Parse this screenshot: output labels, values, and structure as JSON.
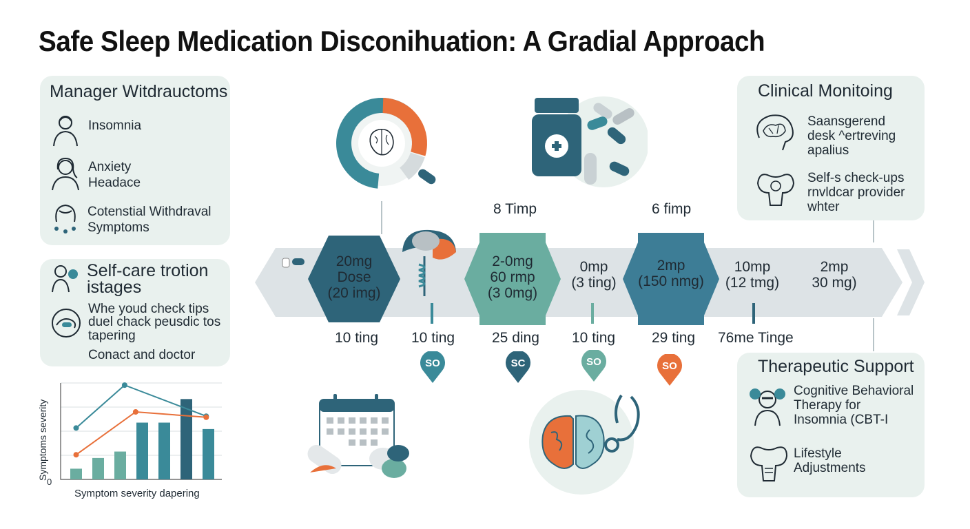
{
  "title": "Safe Sleep Medication Disconihuation: A Gradial Approach",
  "colors": {
    "teal_dark": "#2e6479",
    "teal": "#3a8a99",
    "green": "#6aada0",
    "orange": "#e8703a",
    "panel_bg": "#e9f1ee",
    "band": "#dde3e6"
  },
  "withdrawal": {
    "title": "Manager Witdrauctoms",
    "items": [
      {
        "icon": "person-icon",
        "text": "Insomnia"
      },
      {
        "icon": "woman-icon",
        "text": "Anxiety\nHeadace"
      },
      {
        "icon": "head-drops-icon",
        "text": "Cotenstial Withdraval\nSymptoms"
      }
    ]
  },
  "selfcare": {
    "title": "Self-care trotion\nistages",
    "line1": "Whe youd check tips",
    "line2": "duel chack peusdic tos\ntapering",
    "line3": "Conact and doctor"
  },
  "timeline": {
    "steps": [
      {
        "text": "20mg\nDose\n(20 img)"
      },
      {
        "text": "2-0mg\n60 rmp\n(3 0mg)"
      },
      {
        "text": "0mp\n(3 ting)"
      },
      {
        "text": "2mp\n(150 nmg)"
      },
      {
        "text": "10mp\n(12 tmg)"
      },
      {
        "text": "2mp\n30 mg)"
      }
    ],
    "above_labels": [
      "8 Timp",
      "6 fimp"
    ],
    "below_labels": [
      "10 ting",
      "10 ting",
      "25 ding",
      "10 ting",
      "29 ting",
      "76me Tinge"
    ],
    "pins": [
      "SO",
      "SC",
      "SO",
      "SO"
    ]
  },
  "clinical": {
    "title": "Clinical Monitoing",
    "item1": "Saansgerend\ndesk ^ertreving\napalius",
    "item2": "Self-s check-ups\nrnvldcar provider\nwhter"
  },
  "therapeutic": {
    "title": "Therapeutic Support",
    "item1": "Cognitive Behavioral\nTherapy for\nInsomnia (CBT-I",
    "item2": "Lifestyle\nAdjustments"
  },
  "chart_data": {
    "type": "bar",
    "ylabel": "Symptoms severity",
    "xlabel": "Symptom severity dapering",
    "y_tick": "0",
    "values": [
      1,
      2,
      2.6,
      5.3,
      5.3,
      7.5,
      4.7
    ],
    "series": [
      {
        "name": "",
        "x": [
          0,
          2.2,
          5.9
        ],
        "values": [
          4.8,
          8.8,
          5.9
        ],
        "color": "#3a8a99"
      },
      {
        "name": "",
        "x": [
          0,
          2.7,
          5.9
        ],
        "values": [
          2.3,
          6.3,
          5.8
        ],
        "color": "#e8703a"
      }
    ],
    "ylim": [
      0,
      9
    ]
  }
}
